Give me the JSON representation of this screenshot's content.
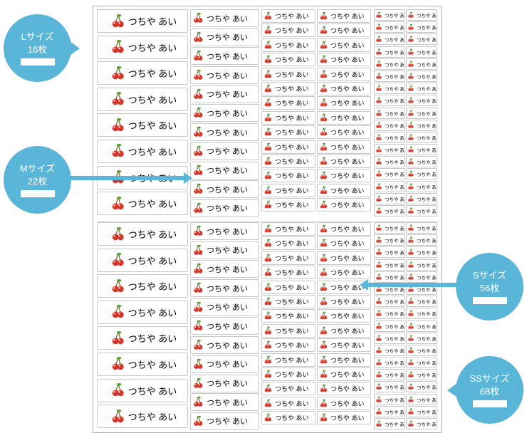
{
  "name_text": "つちや あい",
  "bubbles": {
    "L": {
      "l1": "Lサイズ",
      "l2": "16枚"
    },
    "M": {
      "l1": "Mサイズ",
      "l2": "22枚"
    },
    "S": {
      "l1": "Sサイズ",
      "l2": "56枚"
    },
    "SS": {
      "l1": "SSサイズ",
      "l2": "68枚"
    }
  },
  "per_half": {
    "L": 8,
    "M": 11,
    "S_rows": 14,
    "S_cols": 2,
    "SS_rows": 17,
    "SS_cols": 2
  },
  "colors": {
    "bubble": "#59b6d8",
    "cherry_red": "#d4362a",
    "cherry_leaf": "#5a9e3c",
    "cherry_stem": "#7a6a2a",
    "border": "#c8c8c8"
  }
}
